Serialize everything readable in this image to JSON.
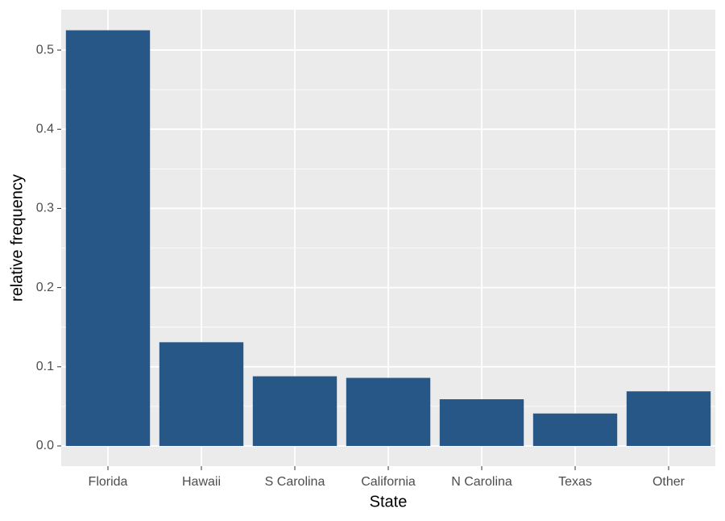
{
  "chart_data": {
    "type": "bar",
    "x_label": "State",
    "y_label": "relative frequency",
    "categories": [
      "Florida",
      "Hawaii",
      "S Carolina",
      "California",
      "N Carolina",
      "Texas",
      "Other"
    ],
    "values": [
      0.525,
      0.131,
      0.088,
      0.086,
      0.059,
      0.041,
      0.069
    ],
    "color": "#275787",
    "ylim": [
      -0.0255,
      0.551
    ],
    "yticks": [
      {
        "value": 0,
        "label": "0.0"
      },
      0.1,
      0.2,
      0.3,
      0.4,
      0.5
    ],
    "y_minor_ticks": [
      0.05,
      0.15,
      0.25,
      0.35,
      0.45
    ],
    "grid": true
  }
}
